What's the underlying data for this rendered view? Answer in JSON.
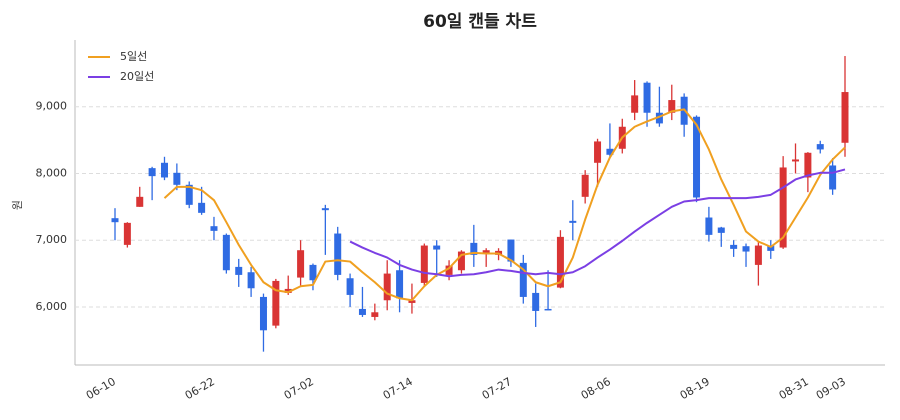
{
  "chart_data": {
    "type": "candlestick",
    "title": "60일 캔들 차트",
    "ylabel": "원",
    "categories": [
      "06-10",
      null,
      null,
      null,
      null,
      null,
      null,
      null,
      "06-22",
      null,
      null,
      null,
      null,
      null,
      null,
      null,
      "07-02",
      null,
      null,
      null,
      null,
      null,
      null,
      null,
      "07-14",
      null,
      null,
      null,
      null,
      null,
      null,
      null,
      "07-27",
      null,
      null,
      null,
      null,
      null,
      null,
      null,
      "08-06",
      null,
      null,
      null,
      null,
      null,
      null,
      null,
      "08-19",
      null,
      null,
      null,
      null,
      null,
      null,
      null,
      "08-31",
      null,
      null,
      "09-03"
    ],
    "open": [
      7330,
      6930,
      7500,
      8080,
      8160,
      8010,
      7830,
      7560,
      7210,
      7080,
      6600,
      6520,
      6150,
      5720,
      6210,
      6440,
      6630,
      7480,
      7100,
      6430,
      5970,
      5850,
      6100,
      6550,
      6060,
      6360,
      6920,
      6480,
      6550,
      6960,
      6810,
      6780,
      7010,
      6660,
      6210,
      5970,
      6290,
      7290,
      7650,
      8160,
      8370,
      8370,
      8910,
      9360,
      8910,
      8910,
      9150,
      8850,
      7340,
      7190,
      6930,
      6910,
      6630,
      6920,
      6890,
      8180,
      7940,
      8440,
      8120,
      8460
    ],
    "high": [
      7480,
      7270,
      7800,
      8100,
      8250,
      8150,
      7880,
      7800,
      7350,
      7100,
      6720,
      6600,
      6200,
      6420,
      6470,
      7000,
      6650,
      7530,
      7200,
      6500,
      6300,
      6050,
      6700,
      6700,
      6350,
      6950,
      7000,
      6700,
      6850,
      7230,
      6880,
      6880,
      7010,
      6780,
      6350,
      6550,
      7150,
      7600,
      8050,
      8520,
      8750,
      8820,
      9400,
      9380,
      9300,
      9330,
      9200,
      8870,
      7500,
      7200,
      7000,
      6950,
      6980,
      7000,
      8260,
      8450,
      8320,
      8490,
      8230,
      9760
    ],
    "low": [
      7000,
      6890,
      7500,
      7600,
      7900,
      7750,
      7480,
      7380,
      7000,
      6500,
      6300,
      6150,
      5330,
      5680,
      6180,
      6300,
      6250,
      6780,
      6400,
      6000,
      5850,
      5800,
      5950,
      5920,
      5900,
      6300,
      6450,
      6400,
      6500,
      6600,
      6600,
      6700,
      6600,
      6050,
      5700,
      5950,
      6280,
      7000,
      7550,
      7800,
      8250,
      8300,
      8800,
      8700,
      8700,
      8800,
      8550,
      7570,
      6980,
      6900,
      6750,
      6600,
      6320,
      6720,
      6870,
      8000,
      7720,
      8300,
      7680,
      8250
    ],
    "close": [
      7270,
      7260,
      7650,
      7960,
      7940,
      7830,
      7530,
      7410,
      7140,
      6550,
      6480,
      6280,
      5650,
      6390,
      6270,
      6850,
      6400,
      7450,
      6480,
      6180,
      5880,
      5920,
      6500,
      6130,
      6100,
      6920,
      6860,
      6620,
      6830,
      6780,
      6850,
      6840,
      6680,
      6150,
      5940,
      5950,
      7050,
      7260,
      7980,
      8480,
      8280,
      8700,
      9170,
      8910,
      8750,
      9100,
      8730,
      7640,
      7080,
      7110,
      6870,
      6830,
      6920,
      6840,
      8090,
      8210,
      8310,
      8360,
      7760,
      9220
    ],
    "up_color": "#d93434",
    "down_color": "#2f6be3",
    "series": [
      {
        "name": "5일선",
        "color": "#f0a020",
        "values": [
          null,
          null,
          null,
          null,
          7630,
          7800,
          7800,
          7750,
          7600,
          7270,
          6930,
          6630,
          6370,
          6250,
          6220,
          6310,
          6330,
          6680,
          6700,
          6680,
          6520,
          6370,
          6200,
          6130,
          6100,
          6310,
          6480,
          6580,
          6780,
          6810,
          6800,
          6800,
          6700,
          6560,
          6370,
          6310,
          6370,
          6740,
          7310,
          7830,
          8240,
          8540,
          8700,
          8780,
          8850,
          8930,
          8960,
          8730,
          8360,
          7910,
          7530,
          7130,
          6980,
          6900,
          7040,
          7340,
          7640,
          7980,
          8210,
          8390
        ]
      },
      {
        "name": "20일선",
        "color": "#7b3fe4",
        "values": [
          null,
          null,
          null,
          null,
          null,
          null,
          null,
          null,
          null,
          null,
          null,
          null,
          null,
          null,
          null,
          null,
          null,
          null,
          null,
          6980,
          6890,
          6810,
          6740,
          6630,
          6560,
          6510,
          6490,
          6460,
          6480,
          6490,
          6520,
          6560,
          6540,
          6510,
          6490,
          6510,
          6490,
          6520,
          6610,
          6740,
          6860,
          6990,
          7130,
          7260,
          7380,
          7500,
          7580,
          7600,
          7630,
          7630,
          7630,
          7630,
          7650,
          7680,
          7790,
          7910,
          7970,
          8010,
          8010,
          8060
        ]
      }
    ],
    "ylim": [
      5130,
      10000
    ],
    "yticks": [
      {
        "value": 6000,
        "label": "6,000"
      },
      {
        "value": 7000,
        "label": "7,000"
      },
      {
        "value": 8000,
        "label": "8,000"
      },
      {
        "value": 9000,
        "label": "9,000"
      }
    ],
    "grid": true,
    "legend": "upper left"
  }
}
